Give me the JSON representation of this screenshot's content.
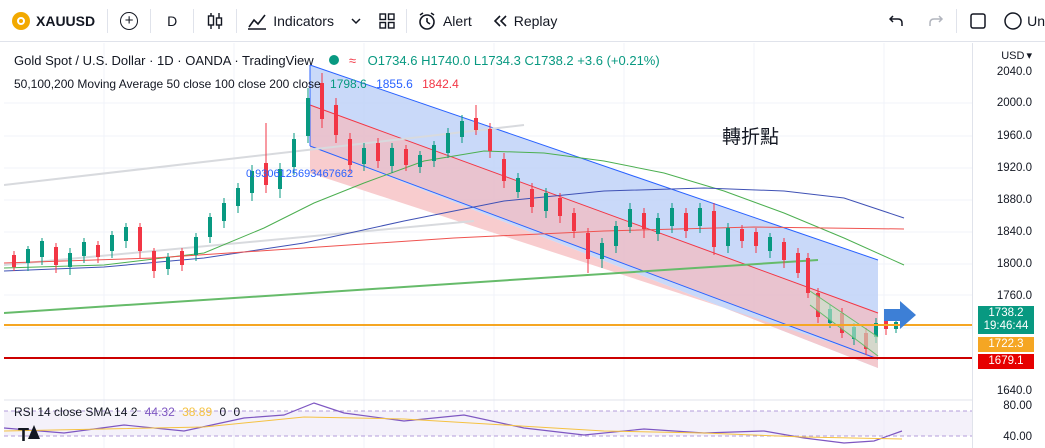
{
  "toolbar": {
    "symbol": "XAUUSD",
    "interval": "D",
    "indicators_label": "Indicators",
    "alert_label": "Alert",
    "replay_label": "Replay",
    "cutoff_label": "Un"
  },
  "legend": {
    "title": "Gold Spot / U.S. Dollar · 1D · OANDA · TradingView",
    "open": "O1734.6",
    "high": "H1740.0",
    "low": "L1734.3",
    "close": "C1738.2",
    "change": "+3.6 (+0.21%)",
    "ma_label": "50,100,200 Moving Average 50 close 100 close 200 close",
    "ma50": "1798.6",
    "ma100": "1855.6",
    "ma200": "1842.4"
  },
  "annotation_text": "轉折點",
  "fib_label": "0.9306125693467662",
  "axis": {
    "currency": "USD",
    "ticks": [
      "2040.0",
      "2000.0",
      "1960.0",
      "1920.0",
      "1880.0",
      "1840.0",
      "1800.0",
      "1760.0",
      "1640.0"
    ],
    "rsi_ticks": [
      "80.00",
      "40.00"
    ]
  },
  "price_tags": {
    "current_price": "1738.2",
    "countdown": "19:46:44",
    "support_1": "1722.3",
    "support_2": "1679.1"
  },
  "rsi": {
    "label": "RSI 14 close SMA 14 2",
    "value1": "44.32",
    "value2": "38.89",
    "value3": "0",
    "value4": "0"
  },
  "colors": {
    "up": "#089981",
    "down": "#f23645",
    "channel_blue": "#2962ff",
    "support_orange": "#f5a623",
    "support_red": "#cc0000",
    "arrow": "#3d7fd6"
  }
}
